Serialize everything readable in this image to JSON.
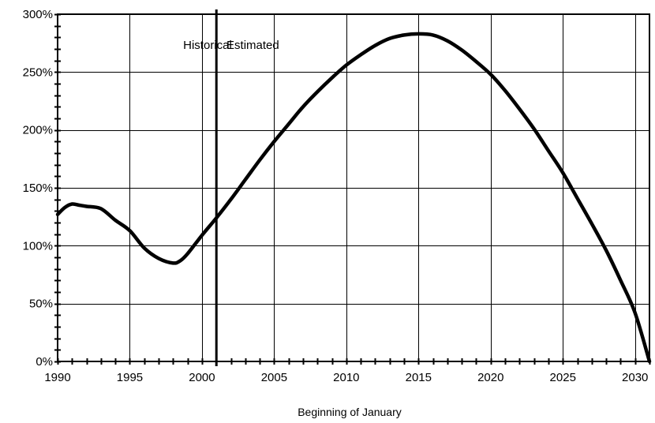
{
  "chart_data": {
    "type": "line",
    "title": "",
    "xlabel": "Beginning of January",
    "ylabel": "",
    "xlim": [
      1990,
      2031
    ],
    "ylim": [
      0,
      300
    ],
    "x_ticks": [
      1990,
      1995,
      2000,
      2005,
      2010,
      2015,
      2020,
      2025,
      2030
    ],
    "x_tick_labels": [
      "1990",
      "1995",
      "2000",
      "2005",
      "2010",
      "2015",
      "2020",
      "2025",
      "2030"
    ],
    "y_ticks": [
      0,
      50,
      100,
      150,
      200,
      250,
      300
    ],
    "y_tick_labels": [
      "0%",
      "50%",
      "100%",
      "150%",
      "200%",
      "250%",
      "300%"
    ],
    "grid": true,
    "legend": "none",
    "divider_x": 2001,
    "annotations": [
      {
        "text": "Historical",
        "x": 1998.7,
        "y": 270
      },
      {
        "text": "Estimated",
        "x": 2001.7,
        "y": 270
      }
    ],
    "series": [
      {
        "name": "",
        "x": [
          1990,
          1990.5,
          1991,
          1991.5,
          1992,
          1993,
          1994,
          1995,
          1996,
          1997,
          1998,
          1998.5,
          1999,
          2000,
          2001,
          2002,
          2003,
          2004,
          2005,
          2006,
          2007,
          2008,
          2009,
          2010,
          2011,
          2012,
          2013,
          2014,
          2015,
          2016,
          2017,
          2018,
          2019,
          2020,
          2021,
          2022,
          2023,
          2024,
          2025,
          2026,
          2027,
          2028,
          2029,
          2030,
          2031
        ],
        "y": [
          127,
          133,
          136,
          135,
          134,
          132,
          122,
          113,
          98,
          89,
          85,
          87,
          93,
          109,
          124,
          140,
          157,
          174,
          190,
          205,
          220,
          233,
          245,
          256,
          265,
          273,
          279,
          282,
          283,
          282,
          277,
          269,
          259,
          248,
          234,
          218,
          201,
          182,
          163,
          141,
          119,
          96,
          70,
          42,
          0
        ]
      }
    ]
  }
}
